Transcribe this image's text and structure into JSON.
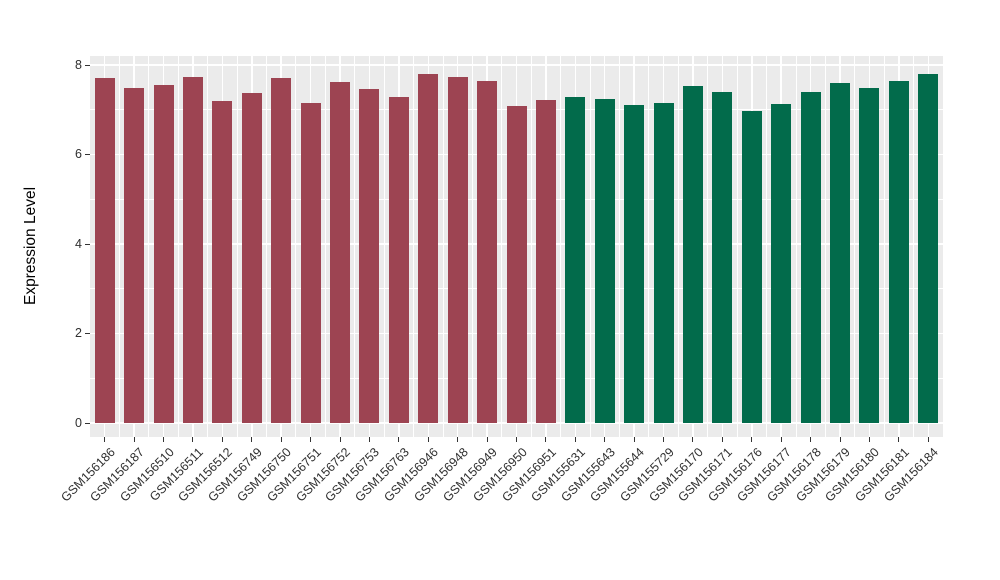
{
  "chart_data": {
    "type": "bar",
    "title": "",
    "xlabel": "",
    "ylabel": "Expression Level",
    "ylim": [
      0,
      8.3
    ],
    "yticks": [
      0,
      2,
      4,
      6,
      8
    ],
    "grid": true,
    "legend": false,
    "categories": [
      "GSM156186",
      "GSM156187",
      "GSM156510",
      "GSM156511",
      "GSM156512",
      "GSM156749",
      "GSM156750",
      "GSM156751",
      "GSM156752",
      "GSM156753",
      "GSM156763",
      "GSM156946",
      "GSM156948",
      "GSM156949",
      "GSM156950",
      "GSM156951",
      "GSM155631",
      "GSM155643",
      "GSM155644",
      "GSM155729",
      "GSM156170",
      "GSM156171",
      "GSM156176",
      "GSM156177",
      "GSM156178",
      "GSM156179",
      "GSM156180",
      "GSM156181",
      "GSM156184"
    ],
    "values": [
      7.72,
      7.48,
      7.55,
      7.74,
      7.2,
      7.38,
      7.7,
      7.15,
      7.62,
      7.46,
      7.29,
      7.81,
      7.74,
      7.65,
      7.08,
      7.22,
      7.29,
      7.24,
      7.11,
      7.16,
      7.53,
      7.4,
      6.98,
      7.12,
      7.39,
      7.59,
      7.48,
      7.65,
      7.81
    ],
    "groups": [
      {
        "name": "group-1",
        "color": "#9D4452",
        "start_index": 0,
        "count": 16
      },
      {
        "name": "group-2",
        "color": "#026B4B",
        "start_index": 16,
        "count": 13
      }
    ]
  },
  "style_colors": {
    "panel_background": "#EBEBEB",
    "grid_color": "#FFFFFF",
    "tick_color": "#333333",
    "axis_text_color": "#303030"
  }
}
